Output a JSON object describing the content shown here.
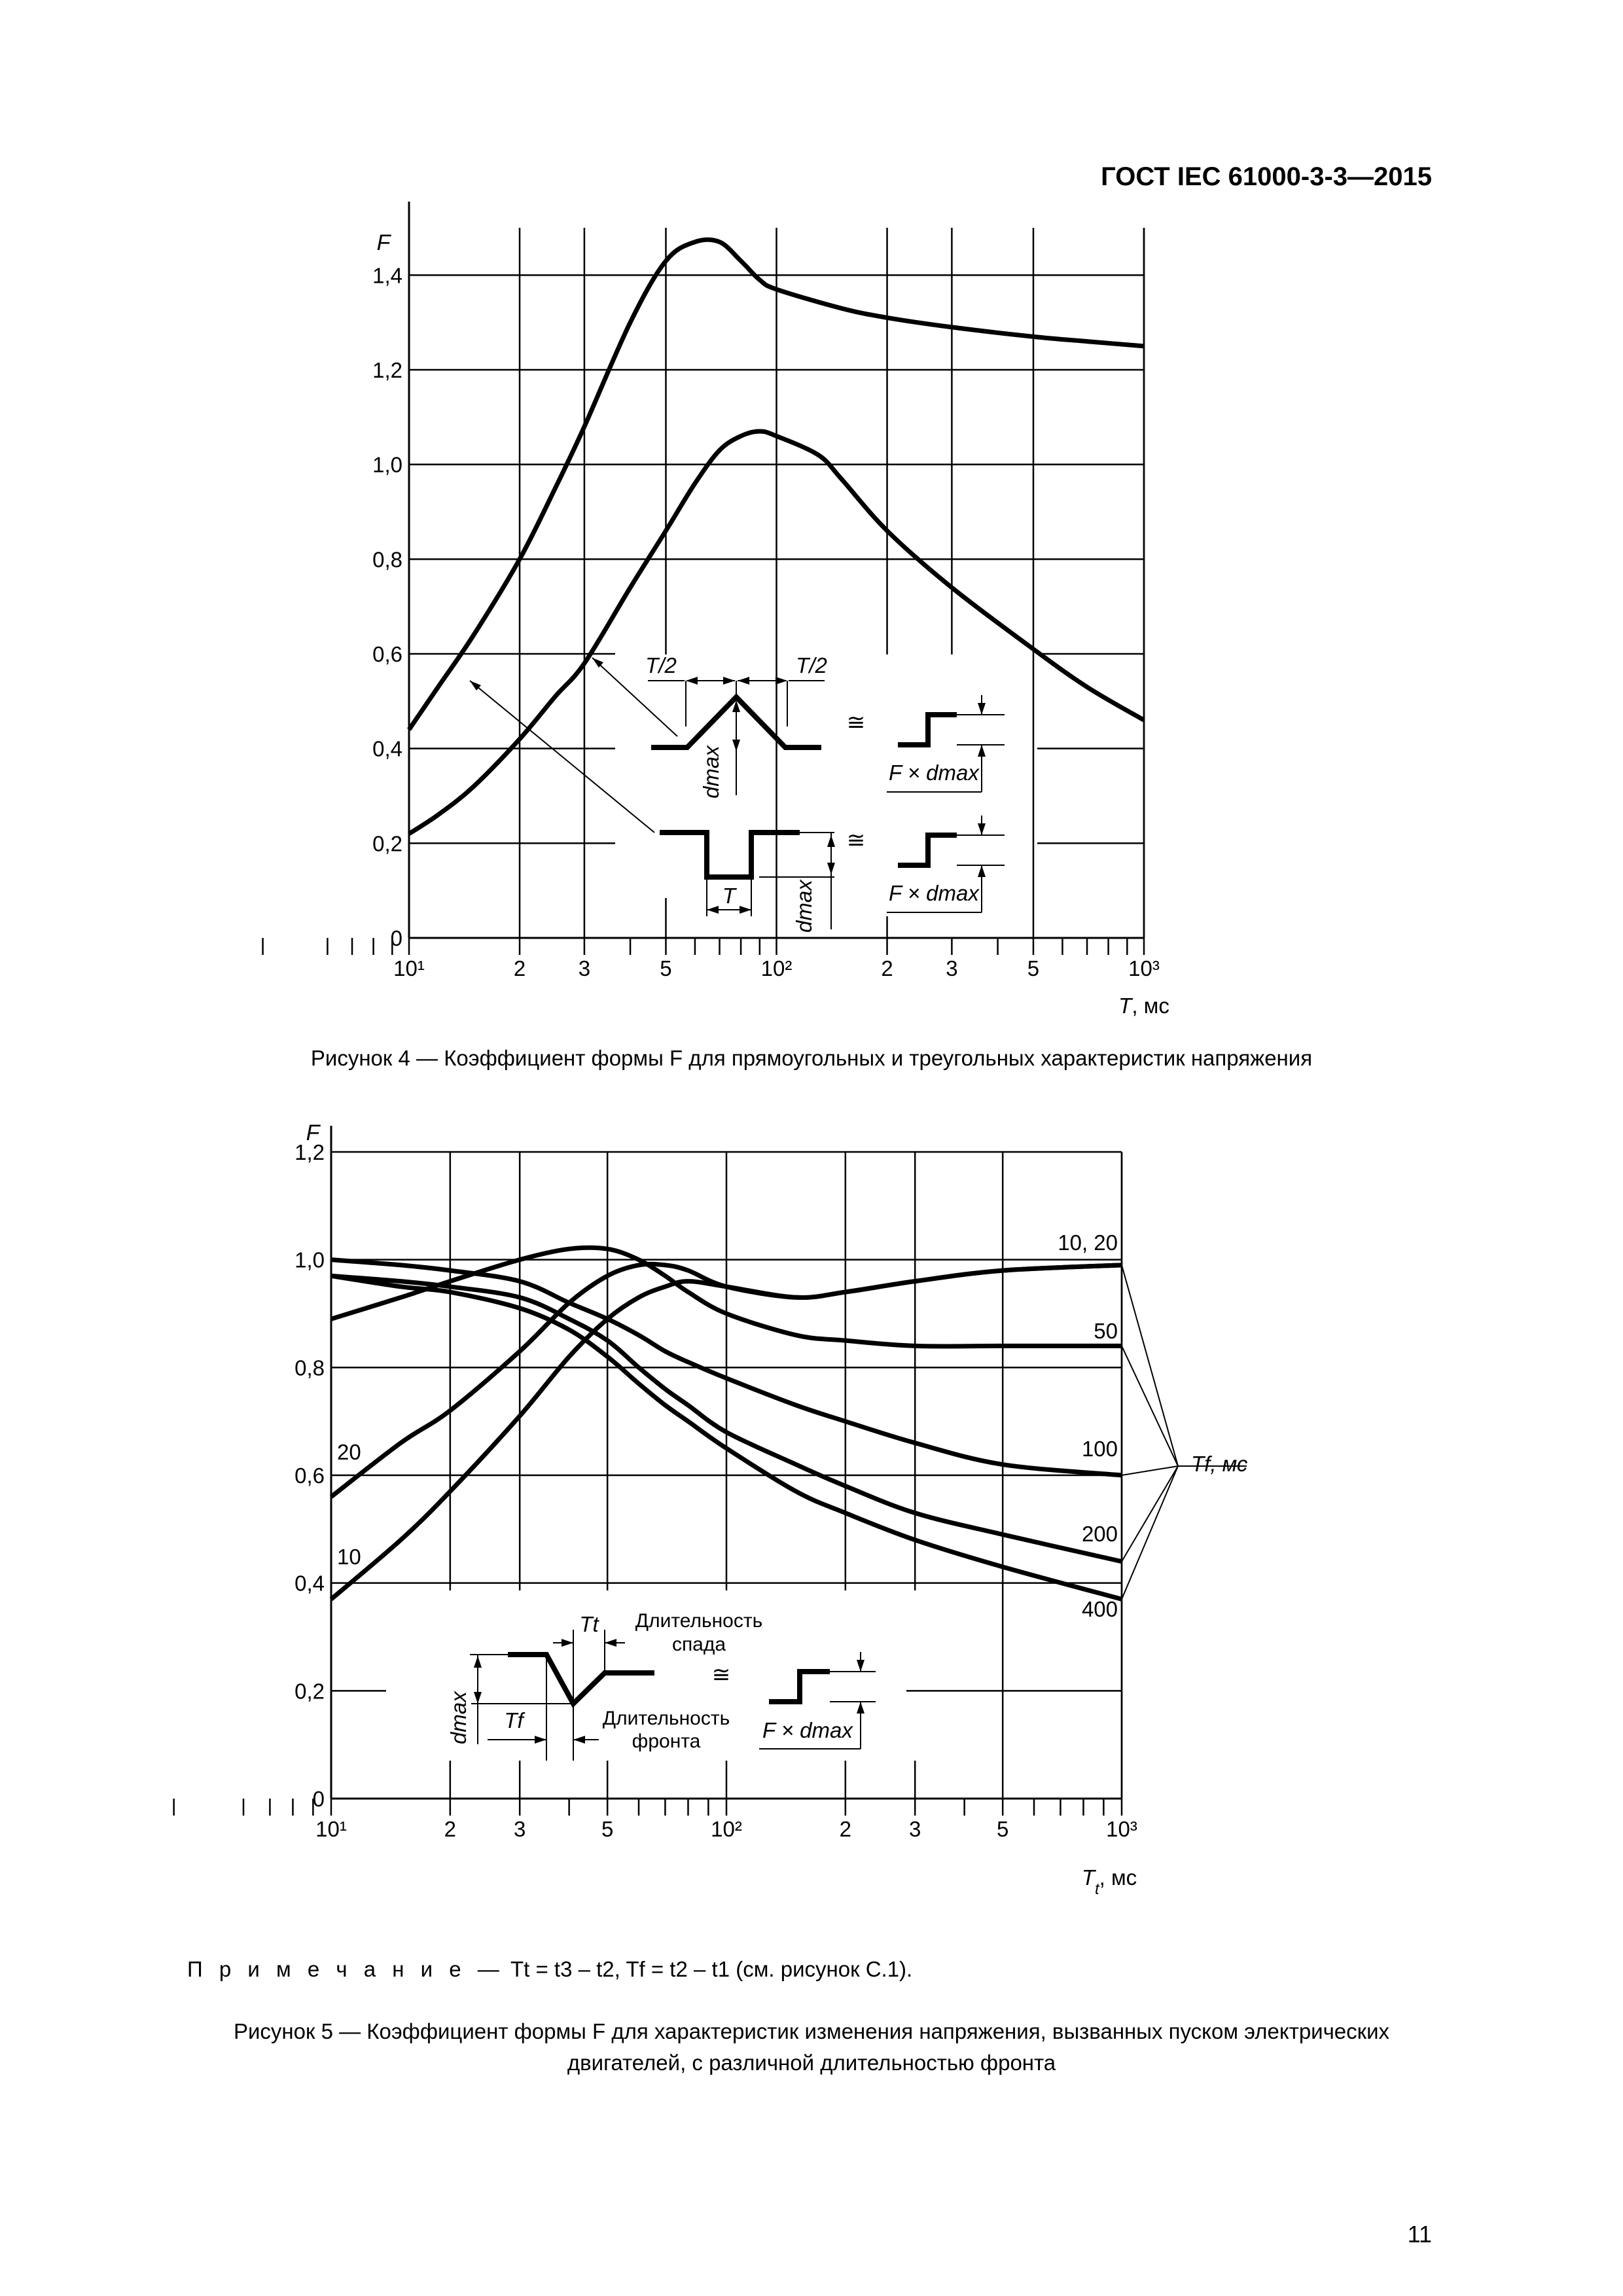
{
  "header": {
    "document_code": "ГОСТ IEC 61000-3-3—2015"
  },
  "page_number": "11",
  "figure4": {
    "caption": "Рисунок  4 — Коэффициент формы F для прямоугольных и треугольных характеристик напряжения",
    "inset": {
      "tri_half_left": "T/2",
      "tri_half_right": "T/2",
      "d_max": "dmax",
      "approx_symbol": "≅",
      "step_label": "F × dmax",
      "rect_width": "T"
    }
  },
  "figure5": {
    "caption_line1": "Рисунок  5 — Коэффициент формы F для характеристик изменения напряжения, вызванных пуском электрических",
    "caption_line2": "двигателей, с различной длительностью фронта",
    "note_prefix": "П р и м е ч а н и е —",
    "note_text": "Tt = t3 – t2, Tf = t2 – t1 (см. рисунок С.1).",
    "inset": {
      "tail_label": "Tt",
      "tail_desc_line1": "Длительность",
      "tail_desc_line2": "спада",
      "front_label": "Tf",
      "front_desc_line1": "Длительность",
      "front_desc_line2": "фронта",
      "d_max": "dmax",
      "approx_symbol": "≅",
      "step_label": "F × dmax"
    },
    "tf_axis_label": "Tf, мс"
  },
  "chart_data": [
    {
      "type": "line",
      "title": "",
      "xlabel": "T, мс",
      "ylabel": "F",
      "x_scale": "log",
      "xlim": [
        10,
        1000
      ],
      "ylim": [
        0,
        1.5
      ],
      "grid": true,
      "x_major_ticks": [
        10,
        20,
        30,
        50,
        100,
        200,
        300,
        500,
        1000
      ],
      "x_tick_labels": [
        "10¹",
        "2",
        "3",
        "5",
        "10²",
        "2",
        "3",
        "5",
        "10³"
      ],
      "y_ticks": [
        0,
        0.2,
        0.4,
        0.6,
        0.8,
        1.0,
        1.2,
        1.4
      ],
      "y_tick_labels": [
        "0",
        "0,2",
        "0,4",
        "0,6",
        "0,8",
        "1,0",
        "1,2",
        "1,4"
      ],
      "series": [
        {
          "name": "",
          "x": [
            10,
            12,
            15,
            20,
            25,
            30,
            40,
            50,
            60,
            70,
            80,
            90,
            100,
            150,
            200,
            300,
            500,
            700,
            1000
          ],
          "y": [
            0.44,
            0.53,
            0.64,
            0.8,
            0.95,
            1.08,
            1.3,
            1.43,
            1.47,
            1.47,
            1.43,
            1.39,
            1.37,
            1.33,
            1.31,
            1.29,
            1.27,
            1.26,
            1.25
          ]
        },
        {
          "name": "",
          "x": [
            10,
            12,
            15,
            20,
            25,
            30,
            40,
            50,
            60,
            70,
            80,
            90,
            100,
            130,
            150,
            200,
            300,
            500,
            700,
            1000
          ],
          "y": [
            0.22,
            0.26,
            0.32,
            0.42,
            0.51,
            0.58,
            0.74,
            0.86,
            0.96,
            1.03,
            1.06,
            1.07,
            1.06,
            1.02,
            0.97,
            0.86,
            0.74,
            0.61,
            0.53,
            0.46
          ]
        }
      ]
    },
    {
      "type": "line",
      "title": "",
      "xlabel": "Tt, мс",
      "ylabel": "F",
      "x_scale": "log",
      "xlim": [
        10,
        1000
      ],
      "ylim": [
        0,
        1.2
      ],
      "grid": true,
      "x_major_ticks": [
        10,
        20,
        30,
        50,
        100,
        200,
        300,
        500,
        1000
      ],
      "x_tick_labels": [
        "10¹",
        "2",
        "3",
        "5",
        "10²",
        "2",
        "3",
        "5",
        "10³"
      ],
      "y_ticks": [
        0,
        0.2,
        0.4,
        0.6,
        0.8,
        1.0,
        1.2
      ],
      "y_tick_labels": [
        "0",
        "0,2",
        "0,4",
        "0,6",
        "0,8",
        "1,0",
        "1,2"
      ],
      "series": [
        {
          "name": "10",
          "x": [
            10,
            15,
            20,
            30,
            40,
            50,
            60,
            70,
            80,
            100,
            150,
            200,
            300,
            500,
            1000
          ],
          "y": [
            0.37,
            0.48,
            0.57,
            0.71,
            0.82,
            0.89,
            0.93,
            0.95,
            0.96,
            0.95,
            0.93,
            0.94,
            0.96,
            0.98,
            0.99
          ]
        },
        {
          "name": "20",
          "x": [
            10,
            15,
            20,
            30,
            40,
            50,
            60,
            70,
            80,
            100,
            150,
            200,
            300,
            500,
            1000
          ],
          "y": [
            0.56,
            0.66,
            0.72,
            0.83,
            0.92,
            0.97,
            0.99,
            0.99,
            0.98,
            0.95,
            0.93,
            0.94,
            0.96,
            0.98,
            0.99
          ]
        },
        {
          "name": "50",
          "x": [
            10,
            15,
            20,
            30,
            40,
            50,
            60,
            70,
            80,
            100,
            150,
            200,
            300,
            500,
            1000
          ],
          "y": [
            0.89,
            0.93,
            0.96,
            1.0,
            1.02,
            1.02,
            1.0,
            0.97,
            0.94,
            0.9,
            0.86,
            0.85,
            0.84,
            0.84,
            0.84
          ]
        },
        {
          "name": "100",
          "x": [
            10,
            15,
            20,
            30,
            40,
            50,
            60,
            70,
            80,
            100,
            150,
            200,
            300,
            500,
            1000
          ],
          "y": [
            1.0,
            0.99,
            0.98,
            0.96,
            0.92,
            0.89,
            0.86,
            0.83,
            0.81,
            0.78,
            0.73,
            0.7,
            0.66,
            0.62,
            0.6
          ]
        },
        {
          "name": "200",
          "x": [
            10,
            15,
            20,
            30,
            40,
            50,
            60,
            70,
            80,
            100,
            150,
            200,
            300,
            500,
            1000
          ],
          "y": [
            0.97,
            0.96,
            0.95,
            0.93,
            0.89,
            0.85,
            0.8,
            0.76,
            0.73,
            0.68,
            0.62,
            0.58,
            0.53,
            0.49,
            0.44
          ]
        },
        {
          "name": "400",
          "x": [
            10,
            15,
            20,
            30,
            40,
            50,
            60,
            70,
            80,
            100,
            150,
            200,
            300,
            500,
            1000
          ],
          "y": [
            0.97,
            0.95,
            0.94,
            0.91,
            0.87,
            0.82,
            0.77,
            0.73,
            0.7,
            0.65,
            0.57,
            0.53,
            0.48,
            0.43,
            0.37
          ]
        }
      ],
      "series_labels": [
        "10, 20",
        "50",
        "100",
        "200",
        "400",
        "20",
        "10"
      ]
    }
  ]
}
